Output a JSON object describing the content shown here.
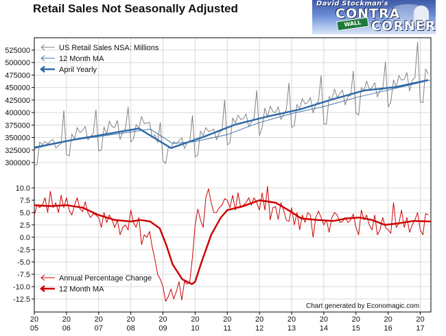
{
  "chart_data": [
    {
      "type": "line",
      "title": "Retail Sales Not Seasonally Adjusted",
      "ylim": [
        290000,
        545000
      ],
      "yticks": [
        "525000",
        "500000",
        "475000",
        "450000",
        "425000",
        "400000",
        "375000",
        "350000",
        "325000",
        "300000"
      ],
      "xlim": [
        2005.0,
        2017.33
      ],
      "x_tick_labels": [
        {
          "top": "20",
          "bottom": "05"
        },
        {
          "top": "20",
          "bottom": "06"
        },
        {
          "top": "20",
          "bottom": "07"
        },
        {
          "top": "20",
          "bottom": "08"
        },
        {
          "top": "20",
          "bottom": "09"
        },
        {
          "top": "20",
          "bottom": "10"
        },
        {
          "top": "20",
          "bottom": "11"
        },
        {
          "top": "20",
          "bottom": "12"
        },
        {
          "top": "20",
          "bottom": "13"
        },
        {
          "top": "20",
          "bottom": "14"
        },
        {
          "top": "20",
          "bottom": "15"
        },
        {
          "top": "20",
          "bottom": "16"
        },
        {
          "top": "20",
          "bottom": "17"
        }
      ],
      "legend_position": "top-left",
      "grid": true,
      "series": [
        {
          "name": "US Retail Sales NSA: Millions",
          "color": "#808080",
          "monthly_start": 2005.0,
          "values": [
            293000,
            296000,
            341000,
            336000,
            342000,
            337000,
            343000,
            346000,
            329000,
            334000,
            338000,
            404000,
            316000,
            313000,
            357000,
            347000,
            370000,
            360000,
            364000,
            372000,
            345000,
            352000,
            358000,
            405000,
            323000,
            325000,
            371000,
            357000,
            383000,
            372000,
            370000,
            384000,
            346000,
            361000,
            367000,
            411000,
            341000,
            347000,
            376000,
            368000,
            392000,
            378000,
            379000,
            380000,
            350000,
            355000,
            340000,
            380000,
            304000,
            298000,
            330000,
            329000,
            342000,
            338000,
            344000,
            349000,
            328000,
            339000,
            342000,
            394000,
            311000,
            315000,
            363000,
            354000,
            370000,
            362000,
            364000,
            367000,
            345000,
            360000,
            364000,
            425000,
            335000,
            340000,
            389000,
            379000,
            395000,
            386000,
            388000,
            397000,
            372000,
            381000,
            389000,
            444000,
            354000,
            370000,
            409000,
            391000,
            413000,
            402000,
            400000,
            412000,
            386000,
            396000,
            405000,
            459000,
            370000,
            374000,
            416000,
            407000,
            428000,
            417000,
            420000,
            430000,
            399000,
            417000,
            422000,
            474000,
            377000,
            377000,
            432000,
            426000,
            447000,
            430000,
            438000,
            445000,
            415000,
            432000,
            434000,
            483000,
            399000,
            395000,
            450000,
            444000,
            463000,
            446000,
            450000,
            460000,
            431000,
            445000,
            446000,
            501000,
            411000,
            422000,
            465000,
            451000,
            474000,
            465000,
            466000,
            480000,
            443000,
            465000,
            470000,
            541000,
            421000,
            420000,
            487000,
            477000
          ]
        },
        {
          "name": "12 Month MA",
          "color": "#4472a8",
          "points": [
            [
              2005.0,
              328000
            ],
            [
              2006.0,
              343000
            ],
            [
              2007.0,
              352000
            ],
            [
              2008.0,
              361000
            ],
            [
              2008.6,
              367000
            ],
            [
              2009.3,
              338000
            ],
            [
              2010.0,
              342000
            ],
            [
              2011.0,
              356000
            ],
            [
              2012.0,
              380000
            ],
            [
              2013.0,
              398000
            ],
            [
              2014.0,
              412000
            ],
            [
              2015.0,
              430000
            ],
            [
              2016.0,
              445000
            ],
            [
              2017.0,
              460000
            ],
            [
              2017.33,
              465000
            ]
          ]
        },
        {
          "name": "April Yearly",
          "color": "#2e6aa8",
          "points": [
            [
              2005.0,
              330000
            ],
            [
              2006.25,
              346000
            ],
            [
              2007.25,
              357000
            ],
            [
              2008.25,
              368000
            ],
            [
              2009.25,
              329000
            ],
            [
              2010.25,
              351000
            ],
            [
              2011.25,
              376000
            ],
            [
              2012.25,
              392000
            ],
            [
              2013.25,
              406000
            ],
            [
              2014.25,
              426000
            ],
            [
              2015.25,
              444000
            ],
            [
              2016.25,
              451000
            ],
            [
              2017.25,
              465000
            ]
          ]
        }
      ]
    },
    {
      "type": "line",
      "ylim": [
        -13.5,
        11.0
      ],
      "yticks": [
        "10.0",
        "7.5",
        "5.0",
        "2.5",
        "0.0",
        "-2.5",
        "-5.0",
        "-7.5",
        "-10.0",
        "-12.5"
      ],
      "xlim": [
        2005.0,
        2017.33
      ],
      "legend_position": "bottom-left",
      "grid": true,
      "series": [
        {
          "name": "Annual Percentage Change",
          "color": "#cc0000",
          "monthly_start": 2005.0,
          "values": [
            4.5,
            6.5,
            6.0,
            6.5,
            8.0,
            5.0,
            9.3,
            6.0,
            7.0,
            5.0,
            8.5,
            6.0,
            8.0,
            5.5,
            4.5,
            6.5,
            8.0,
            5.8,
            5.2,
            7.2,
            5.0,
            4.0,
            4.8,
            4.5,
            4.0,
            2.0,
            5.0,
            3.0,
            4.5,
            3.5,
            2.0,
            3.5,
            0.5,
            2.0,
            2.5,
            1.5,
            5.5,
            3.0,
            2.0,
            4.0,
            -1.5,
            0.5,
            0.0,
            1.2,
            -2.0,
            -4.5,
            -7.5,
            -8.5,
            -10.0,
            -13.0,
            -12.0,
            -10.5,
            -12.5,
            -11.0,
            -9.0,
            -12.7,
            -9.0,
            -9.5,
            -9.0,
            -4.0,
            2.5,
            5.7,
            3.5,
            2.0,
            8.0,
            9.8,
            7.0,
            5.0,
            5.0,
            6.0,
            6.5,
            7.8,
            7.5,
            6.0,
            8.5,
            5.5,
            9.0,
            6.0,
            6.5,
            7.0,
            8.0,
            6.5,
            8.0,
            7.0,
            5.5,
            9.0,
            5.5,
            10.3,
            3.5,
            6.0,
            6.2,
            3.6,
            7.0,
            5.5,
            3.5,
            3.2,
            6.0,
            2.5,
            5.0,
            1.5,
            4.5,
            3.0,
            5.0,
            4.5,
            0.0,
            4.0,
            5.3,
            4.0,
            2.5,
            3.5,
            1.0,
            4.0,
            5.0,
            4.5,
            3.0,
            3.2,
            4.0,
            3.0,
            3.5,
            4.7,
            2.0,
            0.5,
            5.5,
            3.5,
            4.5,
            2.5,
            1.5,
            4.5,
            0.5,
            1.5,
            4.0,
            2.0,
            1.5,
            0.8,
            7.0,
            2.0,
            2.8,
            5.5,
            2.0,
            4.0,
            1.0,
            2.5,
            3.5,
            5.0,
            1.5,
            0.5,
            4.8,
            4.5
          ]
        },
        {
          "name": "12 Month MA",
          "color": "#cc0000",
          "points": [
            [
              2005.0,
              6.5
            ],
            [
              2005.5,
              6.3
            ],
            [
              2006.0,
              6.5
            ],
            [
              2006.5,
              6.0
            ],
            [
              2007.0,
              4.5
            ],
            [
              2007.5,
              3.5
            ],
            [
              2008.0,
              3.2
            ],
            [
              2008.3,
              3.5
            ],
            [
              2008.6,
              3.2
            ],
            [
              2008.9,
              1.8
            ],
            [
              2009.1,
              -1.5
            ],
            [
              2009.3,
              -5.5
            ],
            [
              2009.6,
              -8.5
            ],
            [
              2009.9,
              -9.5
            ],
            [
              2010.0,
              -9.0
            ],
            [
              2010.2,
              -5.0
            ],
            [
              2010.5,
              0.5
            ],
            [
              2010.8,
              4.0
            ],
            [
              2011.0,
              5.5
            ],
            [
              2011.5,
              6.3
            ],
            [
              2012.0,
              7.5
            ],
            [
              2012.5,
              7.0
            ],
            [
              2012.9,
              5.5
            ],
            [
              2013.3,
              3.8
            ],
            [
              2013.8,
              3.5
            ],
            [
              2014.3,
              3.3
            ],
            [
              2014.7,
              3.8
            ],
            [
              2015.1,
              4.0
            ],
            [
              2015.5,
              3.5
            ],
            [
              2015.9,
              2.5
            ],
            [
              2016.3,
              2.8
            ],
            [
              2016.8,
              3.3
            ],
            [
              2017.33,
              3.2
            ]
          ]
        }
      ]
    }
  ],
  "legend_top": {
    "item1": "US Retail Sales NSA: Millions",
    "item2": "12 Month MA",
    "item3": "April Yearly"
  },
  "legend_bottom": {
    "item1": "Annual Percentage Change",
    "item2": "12 Month MA"
  },
  "credit": "Chart generated by Economagic.com",
  "logo": {
    "line1": "David Stockman's",
    "line2": "CONTRA",
    "line3": "CORNER",
    "street_sign": "WALL"
  }
}
